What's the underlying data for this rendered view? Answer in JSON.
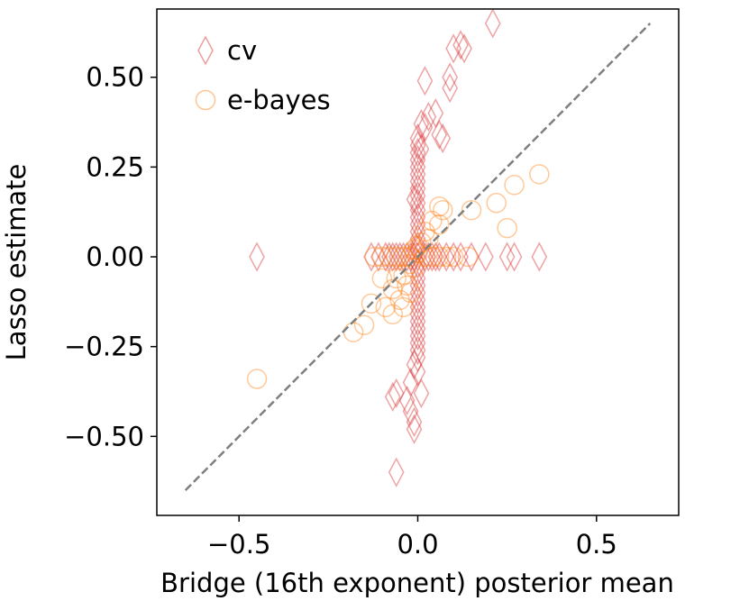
{
  "chart_data": {
    "type": "scatter",
    "xlabel": "Bridge (16th exponent) posterior mean",
    "ylabel": "Lasso estimate",
    "xlim": [
      -0.73,
      0.73
    ],
    "ylim": [
      -0.72,
      0.69
    ],
    "xticks": [
      -0.5,
      0.0,
      0.5
    ],
    "xtick_labels": [
      "−0.5",
      "0.0",
      "0.5"
    ],
    "yticks": [
      -0.5,
      -0.25,
      0.0,
      0.25,
      0.5
    ],
    "ytick_labels": [
      "−0.50",
      "−0.25",
      "0.00",
      "0.25",
      "0.50"
    ],
    "grid": false,
    "legend_position": "top-left",
    "reference_line": {
      "style": "dashed",
      "color": "#7f7f7f",
      "x": [
        -0.65,
        0.65
      ],
      "y": [
        -0.65,
        0.65
      ]
    },
    "series": [
      {
        "name": "cv",
        "marker": "diamond",
        "color": "#d62728",
        "points": [
          [
            0.21,
            0.65
          ],
          [
            0.13,
            0.58
          ],
          [
            0.1,
            0.58
          ],
          [
            0.12,
            0.59
          ],
          [
            0.09,
            0.47
          ],
          [
            0.09,
            0.5
          ],
          [
            0.02,
            0.49
          ],
          [
            0.05,
            0.4
          ],
          [
            0.03,
            0.39
          ],
          [
            0.01,
            0.37
          ],
          [
            0.02,
            0.36
          ],
          [
            0.06,
            0.34
          ],
          [
            0.07,
            0.33
          ],
          [
            0.0,
            0.33
          ],
          [
            0.0,
            0.31
          ],
          [
            0.01,
            0.3
          ],
          [
            0.0,
            0.29
          ],
          [
            0.0,
            0.27
          ],
          [
            0.0,
            0.25
          ],
          [
            0.0,
            0.23
          ],
          [
            0.0,
            0.21
          ],
          [
            0.0,
            0.19
          ],
          [
            0.0,
            0.17
          ],
          [
            -0.01,
            0.16
          ],
          [
            0.0,
            0.15
          ],
          [
            0.0,
            0.13
          ],
          [
            0.0,
            0.11
          ],
          [
            0.0,
            0.09
          ],
          [
            0.0,
            0.07
          ],
          [
            0.0,
            0.05
          ],
          [
            0.0,
            0.03
          ],
          [
            0.0,
            0.02
          ],
          [
            0.0,
            -0.02
          ],
          [
            0.0,
            -0.04
          ],
          [
            0.0,
            -0.06
          ],
          [
            0.0,
            -0.08
          ],
          [
            0.0,
            -0.1
          ],
          [
            0.0,
            -0.12
          ],
          [
            0.0,
            -0.14
          ],
          [
            0.0,
            -0.16
          ],
          [
            0.0,
            -0.18
          ],
          [
            0.0,
            -0.2
          ],
          [
            0.0,
            -0.22
          ],
          [
            0.0,
            -0.24
          ],
          [
            0.0,
            -0.26
          ],
          [
            0.0,
            -0.28
          ],
          [
            -0.01,
            -0.3
          ],
          [
            0.0,
            -0.32
          ],
          [
            -0.02,
            -0.35
          ],
          [
            0.01,
            -0.38
          ],
          [
            -0.03,
            -0.4
          ],
          [
            -0.06,
            -0.38
          ],
          [
            -0.07,
            -0.39
          ],
          [
            -0.02,
            -0.43
          ],
          [
            -0.01,
            -0.46
          ],
          [
            -0.01,
            -0.48
          ],
          [
            -0.06,
            -0.6
          ],
          [
            -0.45,
            0.0
          ],
          [
            -0.13,
            0.0
          ],
          [
            -0.11,
            0.0
          ],
          [
            -0.09,
            0.0
          ],
          [
            -0.08,
            0.0
          ],
          [
            -0.07,
            0.0
          ],
          [
            -0.06,
            0.0
          ],
          [
            -0.05,
            0.0
          ],
          [
            -0.04,
            0.0
          ],
          [
            -0.03,
            0.0
          ],
          [
            -0.02,
            0.0
          ],
          [
            -0.01,
            0.0
          ],
          [
            0.0,
            0.0
          ],
          [
            0.02,
            0.0
          ],
          [
            0.03,
            0.0
          ],
          [
            0.04,
            0.0
          ],
          [
            0.05,
            0.0
          ],
          [
            0.06,
            0.0
          ],
          [
            0.08,
            0.0
          ],
          [
            0.1,
            0.0
          ],
          [
            0.12,
            0.0
          ],
          [
            0.15,
            0.0
          ],
          [
            0.19,
            0.0
          ],
          [
            0.25,
            0.0
          ],
          [
            0.27,
            0.0
          ],
          [
            0.34,
            0.0
          ]
        ]
      },
      {
        "name": "e-bayes",
        "marker": "circle",
        "color": "#ff7f0e",
        "points": [
          [
            0.34,
            0.23
          ],
          [
            0.27,
            0.2
          ],
          [
            0.22,
            0.15
          ],
          [
            0.15,
            0.13
          ],
          [
            0.25,
            0.08
          ],
          [
            0.06,
            0.14
          ],
          [
            0.07,
            0.13
          ],
          [
            0.04,
            0.1
          ],
          [
            0.06,
            0.09
          ],
          [
            0.02,
            0.07
          ],
          [
            0.03,
            0.05
          ],
          [
            0.01,
            0.04
          ],
          [
            0.0,
            0.03
          ],
          [
            -0.01,
            0.02
          ],
          [
            0.0,
            0.01
          ],
          [
            -0.12,
            0.0
          ],
          [
            -0.1,
            0.0
          ],
          [
            -0.08,
            0.0
          ],
          [
            -0.06,
            0.0
          ],
          [
            -0.04,
            0.0
          ],
          [
            -0.02,
            0.0
          ],
          [
            0.02,
            0.0
          ],
          [
            0.04,
            0.0
          ],
          [
            0.06,
            0.0
          ],
          [
            0.08,
            0.0
          ],
          [
            0.1,
            0.0
          ],
          [
            0.14,
            0.0
          ],
          [
            -0.02,
            -0.02
          ],
          [
            -0.01,
            -0.03
          ],
          [
            -0.04,
            -0.05
          ],
          [
            -0.06,
            -0.06
          ],
          [
            -0.1,
            -0.06
          ],
          [
            -0.03,
            -0.08
          ],
          [
            -0.07,
            -0.09
          ],
          [
            -0.02,
            -0.1
          ],
          [
            -0.05,
            -0.12
          ],
          [
            -0.09,
            -0.14
          ],
          [
            -0.07,
            -0.16
          ],
          [
            -0.13,
            -0.13
          ],
          [
            -0.04,
            -0.14
          ],
          [
            -0.15,
            -0.19
          ],
          [
            -0.18,
            -0.21
          ],
          [
            -0.45,
            -0.34
          ]
        ]
      }
    ]
  }
}
